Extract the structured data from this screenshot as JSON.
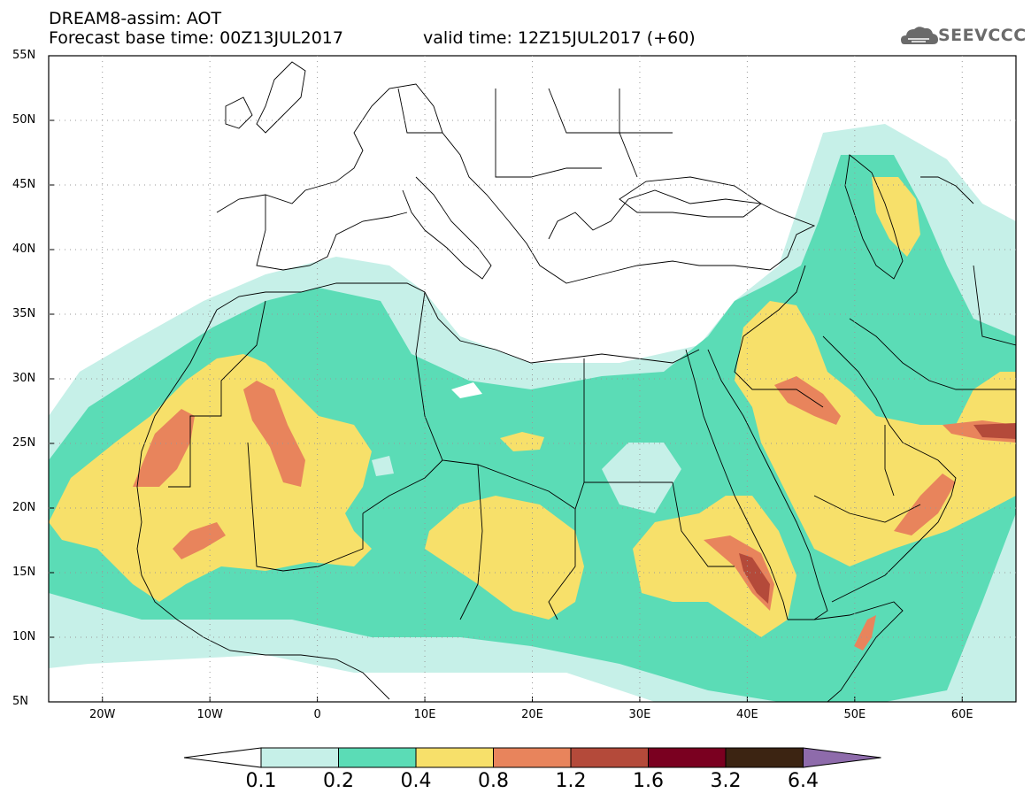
{
  "header": {
    "title": "DREAM8-assim: AOT",
    "base_time": "Forecast base time: 00Z13JUL2017",
    "valid_time": "valid time: 12Z15JUL2017 (+60)"
  },
  "logo": {
    "text": "SEEVCCC",
    "icon": "cloud-icon"
  },
  "axes": {
    "lat_labels": [
      "55N",
      "50N",
      "45N",
      "40N",
      "35N",
      "30N",
      "25N",
      "20N",
      "15N",
      "10N",
      "5N"
    ],
    "lon_labels": [
      "20W",
      "10W",
      "0",
      "10E",
      "20E",
      "30E",
      "40E",
      "50E",
      "60E"
    ]
  },
  "colorbar": {
    "labels": [
      "0.1",
      "0.2",
      "0.4",
      "0.8",
      "1.2",
      "1.6",
      "3.2",
      "6.4"
    ],
    "colors": [
      "#ffffff",
      "#c6f0e8",
      "#5bdcb6",
      "#f7e06a",
      "#e8845c",
      "#b44a3a",
      "#7a0020",
      "#3c2412",
      "#8e6bab"
    ]
  },
  "colors": {
    "aot_0_1_0_2": "#c6f0e8",
    "aot_0_2_0_4": "#5bdcb6",
    "aot_0_4_0_8": "#f7e06a",
    "aot_0_8_1_2": "#e8845c",
    "aot_1_2_1_6": "#b44a3a"
  }
}
